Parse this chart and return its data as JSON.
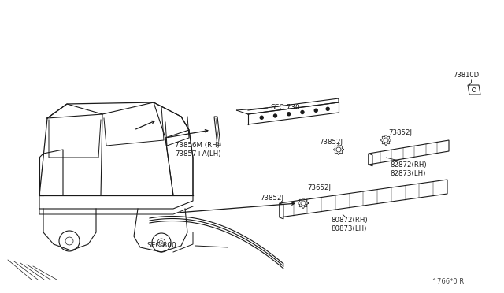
{
  "bg_color": "#ffffff",
  "line_color": "#1a1a1a",
  "text_color": "#1a1a1a",
  "fig_width": 6.4,
  "fig_height": 3.72,
  "dpi": 100,
  "labels": {
    "sec800": "SEC.800",
    "sec730": "SEC.730",
    "part_73856": "73856M (RH)\n73857+A(LH)",
    "part_73852J_a": "73852J",
    "part_73852J_b": "73852J",
    "part_73852J_c": "73852J",
    "part_73652J": "73652J",
    "part_82872": "82872(RH)\n82873(LH)",
    "part_80872": "80872(RH)\n80873(LH)",
    "part_73810D": "73810D",
    "watermark": "^766*0 R"
  }
}
